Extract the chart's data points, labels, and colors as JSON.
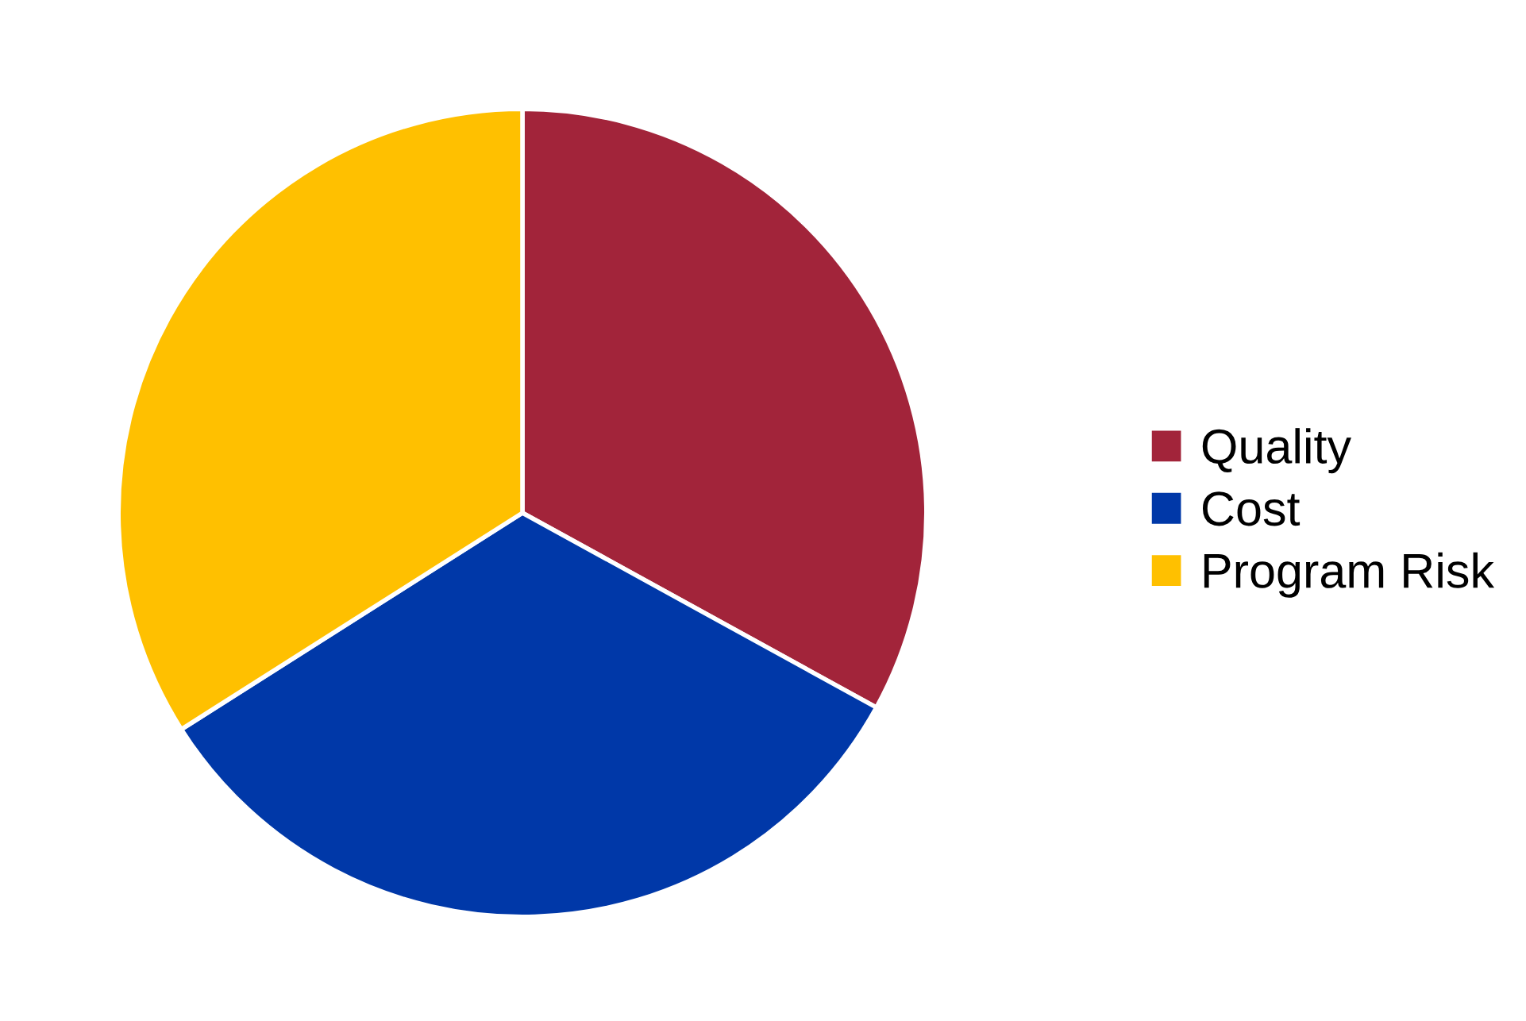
{
  "chart_data": {
    "type": "pie",
    "categories": [
      "Quality",
      "Cost",
      "Program Risk"
    ],
    "values": [
      33,
      33,
      34
    ],
    "colors": [
      "#a2243a",
      "#0038a8",
      "#ffc000"
    ],
    "legend": "right"
  }
}
